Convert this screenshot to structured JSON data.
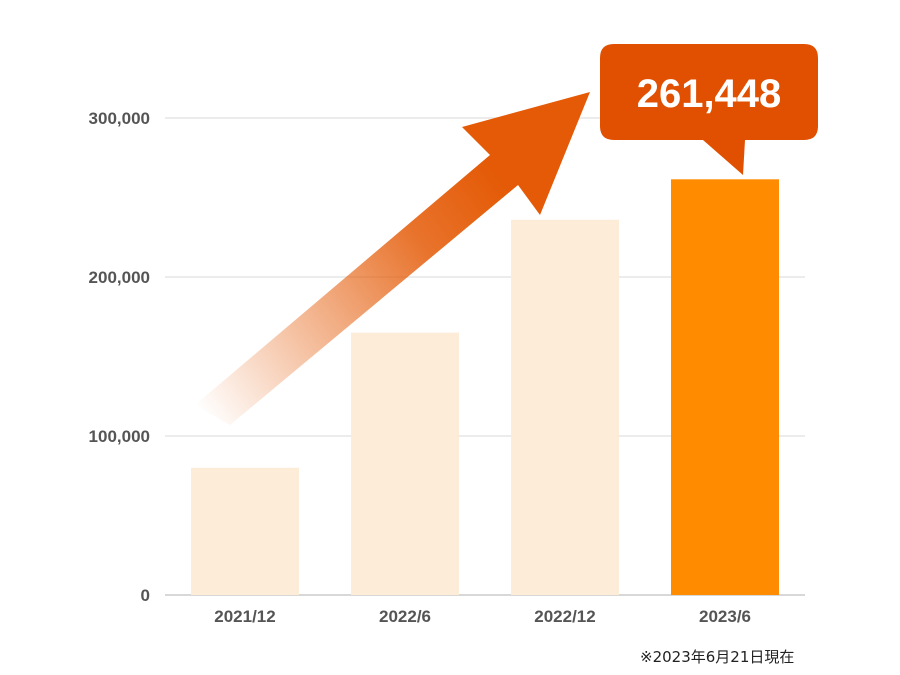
{
  "chart_data": {
    "type": "bar",
    "categories": [
      "2021/12",
      "2022/6",
      "2022/12",
      "2023/6"
    ],
    "values": [
      80000,
      165000,
      236000,
      261448
    ],
    "ylim": [
      0,
      300000
    ],
    "yticks": [
      0,
      100000,
      200000,
      300000
    ],
    "ytick_labels": [
      "0",
      "100,000",
      "200,000",
      "300,000"
    ],
    "grid": true,
    "highlight_index": 3,
    "callout": "261,448",
    "colors": {
      "bar": "#fdecd8",
      "highlight": "#ff8c00",
      "callout": "#e05000",
      "arrow": "#e45a06",
      "grid": "#e6e6e6",
      "label": "#555555"
    }
  },
  "footnote": "※2023年6月21日現在"
}
